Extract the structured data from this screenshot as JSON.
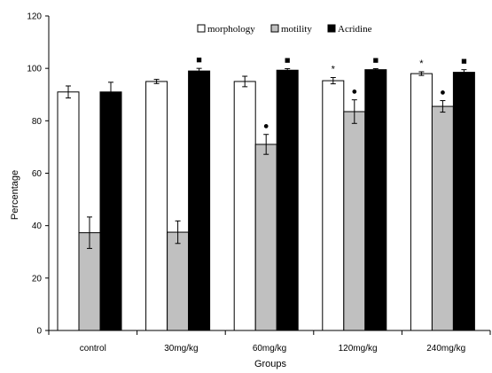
{
  "chart_data": {
    "type": "bar",
    "title": "",
    "xlabel": "Groups",
    "ylabel": "Percentage",
    "ylim": [
      0,
      120
    ],
    "yticks": [
      "0",
      "20",
      "40",
      "60",
      "80",
      "100",
      "120"
    ],
    "grid": false,
    "legend_position": "top",
    "categories": [
      "control",
      "30mg/kg",
      "60mg/kg",
      "120mg/kg",
      "240mg/kg"
    ],
    "series": [
      {
        "name": "morphology",
        "color": "#ffffff",
        "values": [
          91,
          95,
          95,
          95.3,
          98
        ],
        "errors": [
          2.3,
          0.8,
          2.0,
          1.2,
          0.7
        ],
        "markers": [
          "",
          "",
          "",
          "*",
          "*"
        ]
      },
      {
        "name": "motility",
        "color": "#c0c0c0",
        "values": [
          37.3,
          37.5,
          71,
          83.5,
          85.5
        ],
        "errors": [
          6.0,
          4.3,
          3.8,
          4.5,
          2.2
        ],
        "markers": [
          "",
          "",
          "●",
          "●",
          "●"
        ]
      },
      {
        "name": "Acridine",
        "color": "#000000",
        "values": [
          91,
          99,
          99.3,
          99.5,
          98.5
        ],
        "errors": [
          3.7,
          1.0,
          0.6,
          0.4,
          1.0
        ],
        "markers": [
          "",
          "■",
          "■",
          "■",
          "■"
        ]
      }
    ]
  }
}
